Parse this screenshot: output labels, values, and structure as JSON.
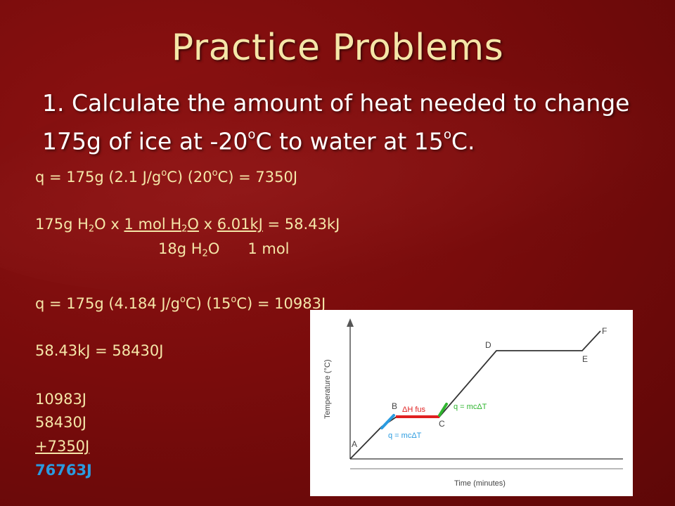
{
  "slide": {
    "title": "Practice Problems",
    "question": {
      "part1": "1. Calculate the amount of heat needed to change 175g of ice at -20",
      "deg1": "o",
      "part2": "C to water at 15",
      "deg2": "o",
      "part3": "C."
    }
  },
  "work": {
    "line1": {
      "a": "q = 175g (2.1 J/g",
      "sup1": "o",
      "b": "C) (20",
      "sup2": "o",
      "c": "C) = 7350J"
    },
    "line2": {
      "a": "175g H",
      "sub1": "2",
      "b": "O x ",
      "u1a": "1 mol H",
      "u1sub": "2",
      "u1b": "O",
      "c": " x ",
      "u2": "6.01kJ",
      "d": " = 58.43kJ"
    },
    "line3": {
      "a": "18g H",
      "sub1": "2",
      "b": "O",
      "c": "1 mol"
    },
    "line4": {
      "a": "q = 175g (4.184 J/g",
      "sup1": "o",
      "b": "C) (15",
      "sup2": "o",
      "c": "C) = 10983J"
    },
    "line5": "58.43kJ = 58430J",
    "sum": {
      "value1": "10983J",
      "value2": "58430J",
      "value3": "+7350J",
      "total": "76763J"
    }
  },
  "graph": {
    "ylabel": "Temperature (°C)",
    "xlabel": "Time (minutes)",
    "point_labels": [
      "A",
      "B",
      "C",
      "D",
      "E",
      "F"
    ],
    "annotations": {
      "dh_fus": "ΔH fus",
      "q_upper": "q = mcΔT",
      "q_lower": "q = mcΔT"
    },
    "colors": {
      "curve": "#333333",
      "dh_fus": "#e02020",
      "segment_ab": "#2a9be0",
      "segment_c": "#2fb52f",
      "q_upper": "#2fb52f",
      "q_lower": "#2a9be0"
    }
  },
  "colors": {
    "title": "#f5e6a8",
    "body_text": "#f5e6a8",
    "question_text": "#ffffff",
    "total": "#2a9be0"
  }
}
